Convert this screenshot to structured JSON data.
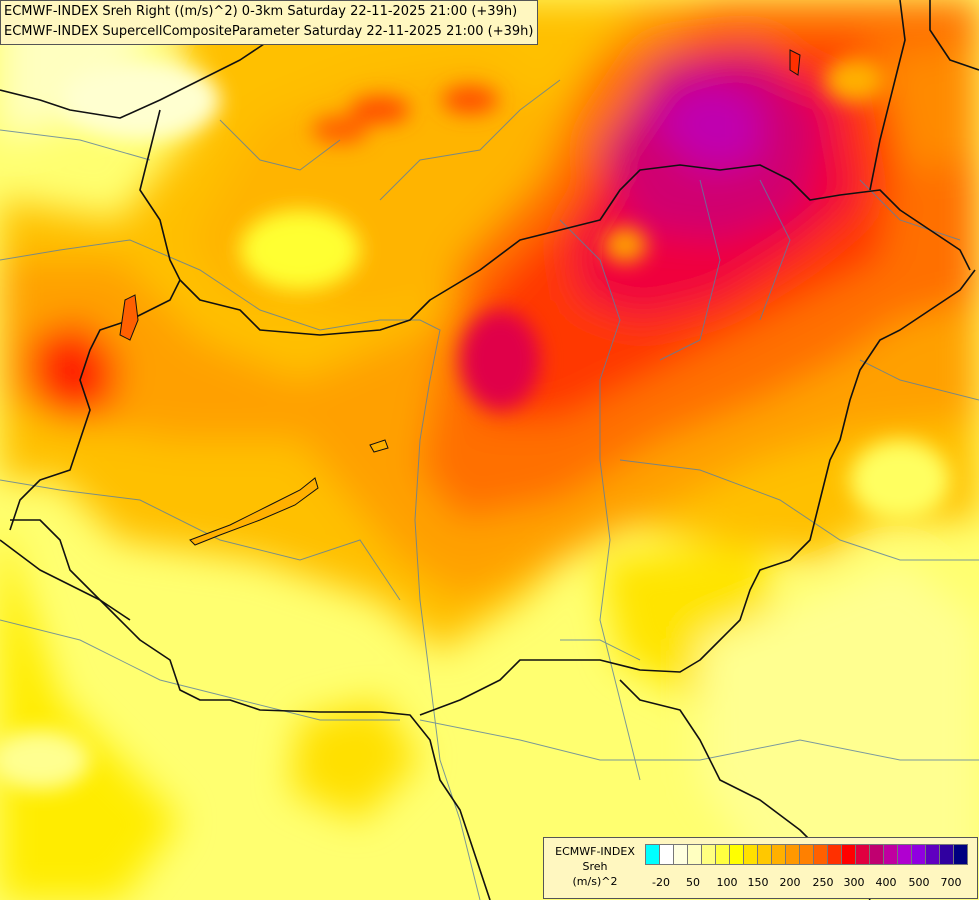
{
  "titles": {
    "line1": "ECMWF-INDEX Sreh Right ((m/s)^2) 0-3km Saturday 22-11-2025 21:00 (+39h)",
    "line2": "ECMWF-INDEX SupercellCompositeParameter Saturday 22-11-2025 21:00 (+39h)"
  },
  "legend": {
    "line1": "ECMWF-INDEX",
    "line2": "Sreh",
    "line3": "(m/s)^2",
    "ticks": [
      "-20",
      "50",
      "100",
      "150",
      "200",
      "250",
      "300",
      "400",
      "500",
      "700"
    ],
    "colors": [
      "#00ffff",
      "#ffffff",
      "#ffffe0",
      "#ffffc0",
      "#ffff80",
      "#ffff40",
      "#ffff00",
      "#ffe000",
      "#ffc800",
      "#ffb000",
      "#ff9800",
      "#ff8000",
      "#ff6000",
      "#ff3000",
      "#ff0000",
      "#e00040",
      "#c00070",
      "#c000a0",
      "#b000d0",
      "#9000e0",
      "#6000c0",
      "#3000a0",
      "#000080"
    ]
  }
}
